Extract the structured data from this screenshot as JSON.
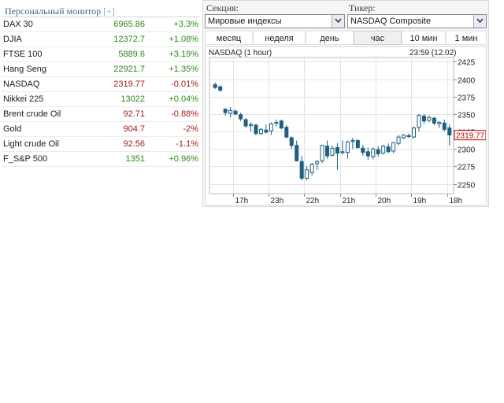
{
  "monitor": {
    "title": "Персональный монитор",
    "expand": "[+]",
    "quotes": [
      {
        "name": "DAX 30",
        "value": "6965.86",
        "change": "+3.3%",
        "dir": "up"
      },
      {
        "name": "DJIA",
        "value": "12372.7",
        "change": "+1.08%",
        "dir": "up"
      },
      {
        "name": "FTSE 100",
        "value": "5889.6",
        "change": "+3.19%",
        "dir": "up"
      },
      {
        "name": "Hang Seng",
        "value": "22921.7",
        "change": "+1.35%",
        "dir": "up"
      },
      {
        "name": "NASDAQ",
        "value": "2319.77",
        "change": "-0.01%",
        "dir": "down"
      },
      {
        "name": "Nikkei 225",
        "value": "13022",
        "change": "+0.04%",
        "dir": "up"
      },
      {
        "name": "Brent crude Oil",
        "value": "92.71",
        "change": "-0.88%",
        "dir": "down"
      },
      {
        "name": "Gold",
        "value": "904.7",
        "change": "-2%",
        "dir": "down"
      },
      {
        "name": "Light crude Oil",
        "value": "92.56",
        "change": "-1.1%",
        "dir": "down"
      },
      {
        "name": "F_S&P 500",
        "value": "1351",
        "change": "+0.96%",
        "dir": "up"
      }
    ]
  },
  "controls": {
    "section_label": "Секция:",
    "section_value": "Мировые индексы",
    "ticker_label": "Тикер:",
    "ticker_value": "NASDAQ Composite",
    "timeframes": [
      "месяц",
      "неделя",
      "день",
      "час",
      "10 мин",
      "1 мин"
    ],
    "active_timeframe": "час"
  },
  "colors": {
    "up": "#2a8a1a",
    "down": "#a01a1a",
    "candle": "#1e5f82",
    "last_price": "#c00000"
  },
  "chart_data": {
    "type": "candlestick",
    "title": "NASDAQ (1 hour)",
    "timestamp": "23:59 (12.02)",
    "y_ticks": [
      2425,
      2400,
      2375,
      2350,
      2325,
      2300,
      2275,
      2250
    ],
    "ylim": [
      2236,
      2431
    ],
    "x_tick_labels": [
      "17h",
      "23h",
      "22h",
      "21h",
      "20h",
      "19h",
      "18h"
    ],
    "x_tick_index": [
      4,
      11,
      18,
      25,
      32,
      39,
      46
    ],
    "last_price": "2319.77",
    "last_value": 2319.77,
    "candles": [
      [
        2392,
        2395,
        2386,
        2388
      ],
      [
        2389,
        2391,
        2382,
        2384
      ],
      [
        2357,
        2358,
        2348,
        2352
      ],
      [
        2351,
        2360,
        2345,
        2355
      ],
      [
        2354,
        2357,
        2348,
        2350
      ],
      [
        2349,
        2352,
        2340,
        2343
      ],
      [
        2342,
        2344,
        2330,
        2333
      ],
      [
        2334,
        2338,
        2325,
        2335
      ],
      [
        2334,
        2336,
        2320,
        2322
      ],
      [
        2322,
        2330,
        2320,
        2328
      ],
      [
        2327,
        2335,
        2322,
        2324
      ],
      [
        2326,
        2338,
        2320,
        2336
      ],
      [
        2337,
        2342,
        2332,
        2338
      ],
      [
        2340,
        2342,
        2328,
        2330
      ],
      [
        2331,
        2334,
        2315,
        2317
      ],
      [
        2316,
        2318,
        2300,
        2305
      ],
      [
        2305,
        2312,
        2282,
        2283
      ],
      [
        2282,
        2290,
        2255,
        2258
      ],
      [
        2258,
        2275,
        2255,
        2270
      ],
      [
        2266,
        2280,
        2262,
        2278
      ],
      [
        2279,
        2284,
        2270,
        2282
      ],
      [
        2283,
        2306,
        2280,
        2305
      ],
      [
        2304,
        2312,
        2286,
        2290
      ],
      [
        2291,
        2305,
        2289,
        2301
      ],
      [
        2302,
        2308,
        2270,
        2294
      ],
      [
        2295,
        2312,
        2292,
        2296
      ],
      [
        2295,
        2312,
        2286,
        2310
      ],
      [
        2311,
        2316,
        2300,
        2312
      ],
      [
        2312,
        2314,
        2300,
        2302
      ],
      [
        2301,
        2306,
        2290,
        2295
      ],
      [
        2296,
        2302,
        2284,
        2290
      ],
      [
        2289,
        2302,
        2285,
        2300
      ],
      [
        2299,
        2304,
        2289,
        2293
      ],
      [
        2294,
        2306,
        2292,
        2304
      ],
      [
        2303,
        2308,
        2294,
        2296
      ],
      [
        2297,
        2310,
        2294,
        2309
      ],
      [
        2308,
        2320,
        2305,
        2317
      ],
      [
        2316,
        2321,
        2314,
        2320
      ],
      [
        2319,
        2322,
        2316,
        2318
      ],
      [
        2317,
        2332,
        2315,
        2330
      ],
      [
        2331,
        2350,
        2325,
        2348
      ],
      [
        2347,
        2350,
        2336,
        2340
      ],
      [
        2341,
        2348,
        2338,
        2345
      ],
      [
        2344,
        2346,
        2334,
        2337
      ],
      [
        2336,
        2340,
        2330,
        2338
      ],
      [
        2337,
        2342,
        2325,
        2328
      ],
      [
        2330,
        2335,
        2305,
        2320
      ]
    ]
  }
}
